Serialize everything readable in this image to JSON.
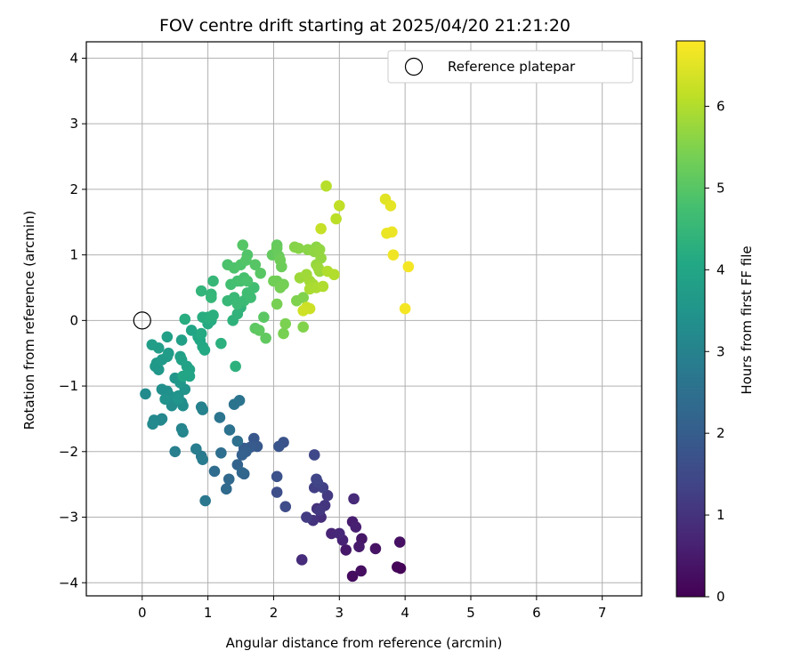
{
  "chart_data": {
    "type": "scatter",
    "title": "FOV centre drift starting at 2025/04/20 21:21:20",
    "xlabel": "Angular distance from reference (arcmin)",
    "ylabel": "Rotation from reference (arcmin)",
    "xlim": [
      -0.85,
      7.6
    ],
    "ylim": [
      -4.2,
      4.25
    ],
    "xticks": [
      0,
      1,
      2,
      3,
      4,
      5,
      6,
      7
    ],
    "yticks": [
      -4,
      -3,
      -2,
      -1,
      0,
      1,
      2,
      3,
      4
    ],
    "grid": true,
    "legend": {
      "placement": "top-right",
      "entries": [
        "Reference platepar"
      ]
    },
    "reference_point": {
      "x": 0,
      "y": 0
    },
    "colorbar": {
      "label": "Hours from first FF file",
      "range": [
        0,
        6.8
      ],
      "ticks": [
        0,
        1,
        2,
        3,
        4,
        5,
        6
      ],
      "colormap": "viridis"
    },
    "points": [
      [
        3.93,
        -3.78,
        0.05
      ],
      [
        3.88,
        -3.76,
        0.1
      ],
      [
        3.2,
        -3.9,
        0.2
      ],
      [
        3.33,
        -3.82,
        0.25
      ],
      [
        3.92,
        -3.38,
        0.3
      ],
      [
        3.55,
        -3.48,
        0.35
      ],
      [
        3.34,
        -3.33,
        0.4
      ],
      [
        3.1,
        -3.5,
        0.45
      ],
      [
        3.3,
        -3.45,
        0.5
      ],
      [
        3.2,
        -3.07,
        0.55
      ],
      [
        3.25,
        -3.15,
        0.6
      ],
      [
        3.05,
        -3.35,
        0.65
      ],
      [
        2.88,
        -3.25,
        0.7
      ],
      [
        3.0,
        -3.25,
        0.75
      ],
      [
        3.22,
        -2.72,
        0.8
      ],
      [
        2.43,
        -3.65,
        0.85
      ],
      [
        2.72,
        -3.0,
        0.9
      ],
      [
        2.66,
        -2.87,
        0.95
      ],
      [
        2.6,
        -3.05,
        1.0
      ],
      [
        2.78,
        -2.82,
        1.05
      ],
      [
        2.7,
        -2.9,
        1.1
      ],
      [
        2.82,
        -2.67,
        1.15
      ],
      [
        2.5,
        -3.0,
        1.2
      ],
      [
        2.62,
        -2.55,
        1.25
      ],
      [
        2.75,
        -2.55,
        1.3
      ],
      [
        2.67,
        -2.47,
        1.35
      ],
      [
        2.65,
        -2.42,
        1.4
      ],
      [
        2.62,
        -2.05,
        1.45
      ],
      [
        2.18,
        -2.84,
        1.55
      ],
      [
        2.05,
        -2.62,
        1.6
      ],
      [
        2.05,
        -2.38,
        1.7
      ],
      [
        2.15,
        -1.86,
        1.75
      ],
      [
        2.08,
        -1.92,
        1.8
      ],
      [
        1.7,
        -1.8,
        1.85
      ],
      [
        1.75,
        -1.92,
        1.9
      ],
      [
        1.65,
        -1.93,
        1.95
      ],
      [
        1.55,
        -1.95,
        2.0
      ],
      [
        1.58,
        -2.0,
        2.05
      ],
      [
        1.52,
        -2.05,
        2.1
      ],
      [
        1.45,
        -2.2,
        2.15
      ],
      [
        1.55,
        -2.34,
        2.2
      ],
      [
        1.52,
        -2.32,
        2.25
      ],
      [
        1.32,
        -2.42,
        2.3
      ],
      [
        1.28,
        -2.57,
        2.35
      ],
      [
        1.1,
        -2.3,
        2.4
      ],
      [
        1.2,
        -2.02,
        2.45
      ],
      [
        1.45,
        -1.84,
        2.5
      ],
      [
        1.33,
        -1.67,
        2.55
      ],
      [
        1.48,
        -1.22,
        2.6
      ],
      [
        1.4,
        -1.28,
        2.62
      ],
      [
        1.18,
        -1.48,
        2.65
      ],
      [
        0.96,
        -2.75,
        2.7
      ],
      [
        0.9,
        -2.07,
        2.75
      ],
      [
        0.92,
        -2.12,
        2.8
      ],
      [
        0.82,
        -1.96,
        2.85
      ],
      [
        0.5,
        -2.0,
        2.9
      ],
      [
        0.9,
        -1.32,
        2.95
      ],
      [
        0.92,
        -1.36,
        3.0
      ],
      [
        0.6,
        -1.65,
        3.05
      ],
      [
        0.62,
        -1.7,
        3.1
      ],
      [
        0.3,
        -1.5,
        3.12
      ],
      [
        0.28,
        -1.52,
        3.15
      ],
      [
        0.18,
        -1.52,
        3.18
      ],
      [
        0.16,
        -1.58,
        3.2
      ],
      [
        0.05,
        -1.12,
        3.25
      ],
      [
        0.45,
        -1.3,
        3.28
      ],
      [
        0.6,
        -1.25,
        3.3
      ],
      [
        0.62,
        -1.3,
        3.32
      ],
      [
        0.3,
        -1.05,
        3.35
      ],
      [
        0.38,
        -1.08,
        3.38
      ],
      [
        0.42,
        -1.15,
        3.4
      ],
      [
        0.35,
        -1.2,
        3.42
      ],
      [
        0.55,
        -1.15,
        3.45
      ],
      [
        0.55,
        -1.2,
        3.48
      ],
      [
        0.65,
        -1.05,
        3.5
      ],
      [
        0.7,
        -0.8,
        3.52
      ],
      [
        0.5,
        -0.88,
        3.55
      ],
      [
        0.58,
        -0.95,
        3.58
      ],
      [
        0.2,
        -0.7,
        3.6
      ],
      [
        0.25,
        -0.75,
        3.62
      ],
      [
        0.22,
        -0.65,
        3.65
      ],
      [
        0.3,
        -0.6,
        3.68
      ],
      [
        0.38,
        -0.55,
        3.7
      ],
      [
        0.4,
        -0.5,
        3.72
      ],
      [
        0.25,
        -0.42,
        3.75
      ],
      [
        0.15,
        -0.37,
        3.78
      ],
      [
        0.38,
        -0.25,
        3.8
      ],
      [
        0.6,
        -0.3,
        3.82
      ],
      [
        0.58,
        -0.55,
        3.85
      ],
      [
        0.6,
        -0.6,
        3.88
      ],
      [
        0.68,
        -0.7,
        3.9
      ],
      [
        0.72,
        -0.75,
        3.92
      ],
      [
        0.72,
        -0.85,
        3.95
      ],
      [
        0.62,
        -0.85,
        3.98
      ],
      [
        0.75,
        -0.15,
        4.0
      ],
      [
        0.85,
        -0.25,
        4.02
      ],
      [
        0.88,
        -0.3,
        4.05
      ],
      [
        0.92,
        -0.4,
        4.08
      ],
      [
        0.95,
        -0.45,
        4.1
      ],
      [
        0.9,
        -0.2,
        4.12
      ],
      [
        1.0,
        -0.05,
        4.15
      ],
      [
        1.05,
        0.0,
        4.18
      ],
      [
        0.65,
        0.02,
        4.2
      ],
      [
        0.92,
        0.05,
        4.22
      ],
      [
        1.0,
        0.05,
        4.25
      ],
      [
        1.08,
        0.08,
        4.28
      ],
      [
        1.2,
        -0.35,
        4.3
      ],
      [
        1.42,
        -0.7,
        4.32
      ],
      [
        1.38,
        0.0,
        4.35
      ],
      [
        1.45,
        0.1,
        4.38
      ],
      [
        1.5,
        0.2,
        4.4
      ],
      [
        0.9,
        0.45,
        4.42
      ],
      [
        1.05,
        0.4,
        4.45
      ],
      [
        1.05,
        0.35,
        4.48
      ],
      [
        1.08,
        0.6,
        4.5
      ],
      [
        1.3,
        0.3,
        4.52
      ],
      [
        1.4,
        0.35,
        4.55
      ],
      [
        1.45,
        0.25,
        4.58
      ],
      [
        1.55,
        0.3,
        4.6
      ],
      [
        1.62,
        0.4,
        4.62
      ],
      [
        1.65,
        0.35,
        4.65
      ],
      [
        1.6,
        0.42,
        4.68
      ],
      [
        1.7,
        0.5,
        4.7
      ],
      [
        1.35,
        0.55,
        4.72
      ],
      [
        1.45,
        0.6,
        4.75
      ],
      [
        1.5,
        0.6,
        4.78
      ],
      [
        1.55,
        0.65,
        4.8
      ],
      [
        1.6,
        0.6,
        4.82
      ],
      [
        1.3,
        0.85,
        4.85
      ],
      [
        1.4,
        0.8,
        4.88
      ],
      [
        1.5,
        0.85,
        4.9
      ],
      [
        1.6,
        1.0,
        4.92
      ],
      [
        1.58,
        0.92,
        4.95
      ],
      [
        1.53,
        1.15,
        4.98
      ],
      [
        1.72,
        0.85,
        5.0
      ],
      [
        1.8,
        0.72,
        5.02
      ],
      [
        1.85,
        0.05,
        5.05
      ],
      [
        1.72,
        -0.12,
        5.08
      ],
      [
        1.78,
        -0.15,
        5.1
      ],
      [
        1.88,
        -0.27,
        5.12
      ],
      [
        1.98,
        1.0,
        5.15
      ],
      [
        2.05,
        1.15,
        5.18
      ],
      [
        2.05,
        1.1,
        5.2
      ],
      [
        2.08,
        0.98,
        5.22
      ],
      [
        2.12,
        0.82,
        5.25
      ],
      [
        2.1,
        0.92,
        5.28
      ],
      [
        2.05,
        0.6,
        5.3
      ],
      [
        2.0,
        0.6,
        5.32
      ],
      [
        2.15,
        0.55,
        5.35
      ],
      [
        2.1,
        0.5,
        5.38
      ],
      [
        2.05,
        0.25,
        5.4
      ],
      [
        2.15,
        -0.2,
        5.42
      ],
      [
        2.18,
        -0.05,
        5.45
      ],
      [
        2.35,
        0.3,
        5.48
      ],
      [
        2.45,
        0.35,
        5.5
      ],
      [
        2.45,
        -0.1,
        5.52
      ],
      [
        2.32,
        1.12,
        5.55
      ],
      [
        2.38,
        1.1,
        5.58
      ],
      [
        2.52,
        1.08,
        5.6
      ],
      [
        2.65,
        1.12,
        5.62
      ],
      [
        2.62,
        1.05,
        5.65
      ],
      [
        2.7,
        1.08,
        5.68
      ],
      [
        2.72,
        0.95,
        5.7
      ],
      [
        2.65,
        0.85,
        5.72
      ],
      [
        2.7,
        0.75,
        5.75
      ],
      [
        2.68,
        0.8,
        5.78
      ],
      [
        2.4,
        0.65,
        5.8
      ],
      [
        2.5,
        0.7,
        5.82
      ],
      [
        2.55,
        0.6,
        5.85
      ],
      [
        2.6,
        0.55,
        5.88
      ],
      [
        2.58,
        0.5,
        5.9
      ],
      [
        2.55,
        0.48,
        5.92
      ],
      [
        2.65,
        0.5,
        5.95
      ],
      [
        2.75,
        0.52,
        5.98
      ],
      [
        2.82,
        0.75,
        6.0
      ],
      [
        2.92,
        0.7,
        6.02
      ],
      [
        2.8,
        2.05,
        6.05
      ],
      [
        2.95,
        1.55,
        6.1
      ],
      [
        3.0,
        1.75,
        6.15
      ],
      [
        2.72,
        1.4,
        6.2
      ],
      [
        2.5,
        0.2,
        6.25
      ],
      [
        2.55,
        0.18,
        6.28
      ],
      [
        2.45,
        0.15,
        6.3
      ],
      [
        3.7,
        1.85,
        6.5
      ],
      [
        3.78,
        1.75,
        6.55
      ],
      [
        3.72,
        1.33,
        6.6
      ],
      [
        3.8,
        1.35,
        6.62
      ],
      [
        3.82,
        1.0,
        6.65
      ],
      [
        4.05,
        0.82,
        6.7
      ],
      [
        4.0,
        0.18,
        6.72
      ]
    ]
  }
}
